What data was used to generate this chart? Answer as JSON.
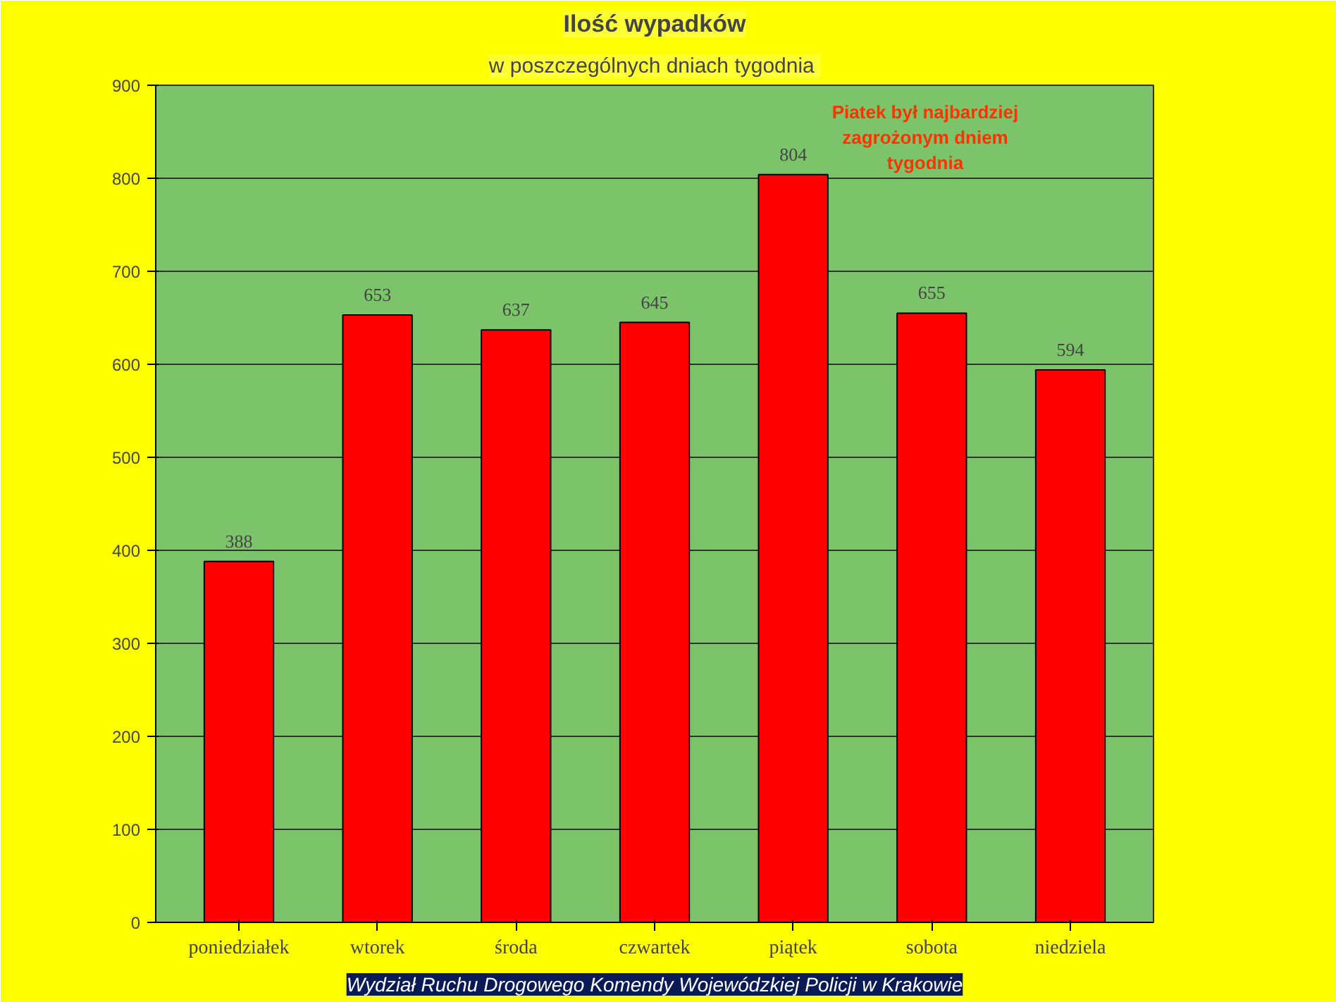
{
  "chart_data": {
    "type": "bar",
    "title": "Ilość wypadków",
    "subtitle": "w poszczególnych  dniach tygodnia",
    "categories": [
      "poniedziałek",
      "wtorek",
      "środa",
      "czwartek",
      "piątek",
      "sobota",
      "niedziela"
    ],
    "values": [
      388,
      653,
      637,
      645,
      804,
      655,
      594
    ],
    "color": "#ff0000",
    "ylim": [
      0,
      900
    ],
    "yticks": [
      0,
      100,
      200,
      300,
      400,
      500,
      600,
      700,
      800,
      900
    ],
    "grid": "y",
    "data_labels": true,
    "annotations": [
      {
        "text": "Piatek był najbardziej zagrożonym dniem tygodnia",
        "x": "piątek",
        "y": 804
      },
      "Wydział Ruchu Drogowego Komendy Wojewódzkiej Policji w Krakowie"
    ]
  }
}
